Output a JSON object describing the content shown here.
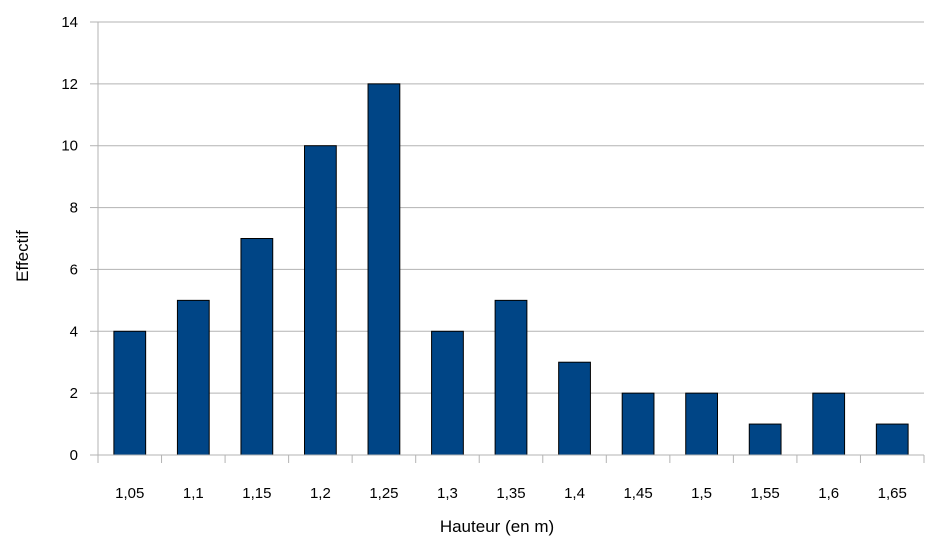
{
  "chart_data": {
    "type": "bar",
    "title": "",
    "xlabel": "Hauteur (en m)",
    "ylabel": "Effectif",
    "categories": [
      "1,05",
      "1,1",
      "1,15",
      "1,2",
      "1,25",
      "1,3",
      "1,35",
      "1,4",
      "1,45",
      "1,5",
      "1,55",
      "1,6",
      "1,65"
    ],
    "values": [
      4,
      5,
      7,
      10,
      12,
      4,
      5,
      3,
      2,
      2,
      1,
      2,
      1
    ],
    "ylim": [
      0,
      14
    ],
    "yticks": [
      0,
      2,
      4,
      6,
      8,
      10,
      12,
      14
    ],
    "grid": true,
    "legend": "none",
    "colors": {
      "bar_fill": "#004586",
      "bar_stroke": "#000000",
      "grid": "#b3b3b3",
      "axis": "#b3b3b3"
    }
  }
}
